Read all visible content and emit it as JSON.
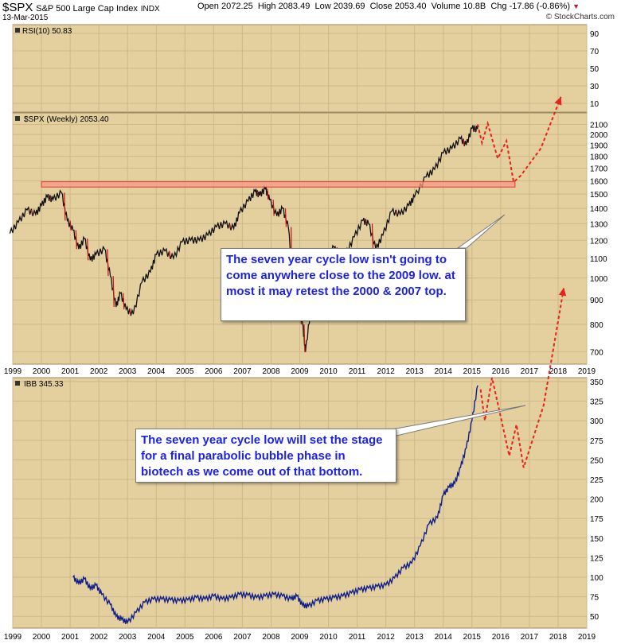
{
  "header": {
    "symbol": "$SPX",
    "name": "S&P 500 Large Cap Index",
    "exchange": "INDX",
    "date": "13-Mar-2015",
    "open_label": "Open",
    "open": "2072.25",
    "high_label": "High",
    "high": "2083.49",
    "low_label": "Low",
    "low": "2039.69",
    "close_label": "Close",
    "close": "2053.40",
    "volume_label": "Volume",
    "volume": "10.8B",
    "chg_label": "Chg",
    "chg": "-17.86 (-0.86%)",
    "watermark": "© StockCharts.com"
  },
  "colors": {
    "panel_bg": "#e4cf9f",
    "grid": "#cdb888",
    "price_line": "#111111",
    "price_down": "#cc1111",
    "ibb_line": "#101e8c",
    "projection": "#e8231b",
    "resistance_fill": "#f59a8a",
    "resistance_edge": "#e03a2a",
    "callout_text": "#1c22e6"
  },
  "chart_data": [
    {
      "type": "line",
      "panel": "RSI",
      "label": "RSI(10) 50.83",
      "y_ticks": [
        90,
        70,
        50,
        30,
        10
      ],
      "ylim": [
        0,
        100
      ],
      "series": []
    },
    {
      "type": "line",
      "panel": "SPX",
      "label": "$SPX (Weekly) 2053.40",
      "x_ticks": [
        "1999",
        "2000",
        "2001",
        "2002",
        "2003",
        "2004",
        "2005",
        "2006",
        "2007",
        "2008",
        "2009",
        "2010",
        "2011",
        "2012",
        "2013",
        "2014",
        "2015",
        "2016",
        "2017",
        "2018",
        "2019"
      ],
      "y_ticks": [
        2100,
        2000,
        1900,
        1800,
        1700,
        1600,
        1500,
        1400,
        1300,
        1200,
        1100,
        1000,
        900,
        800,
        700
      ],
      "y_scale": "log",
      "ylim": [
        660,
        2220
      ],
      "series": [
        {
          "kind": "price",
          "x": [
            1998.9,
            1999.2,
            1999.5,
            1999.8,
            2000.0,
            2000.2,
            2000.4,
            2000.7,
            2000.9,
            2001.1,
            2001.3,
            2001.5,
            2001.7,
            2001.9,
            2002.2,
            2002.4,
            2002.6,
            2002.75,
            2002.95,
            2003.2,
            2003.5,
            2003.8,
            2004.0,
            2004.3,
            2004.6,
            2004.9,
            2005.2,
            2005.5,
            2005.8,
            2006.1,
            2006.4,
            2006.7,
            2006.9,
            2007.2,
            2007.45,
            2007.6,
            2007.8,
            2007.95,
            2008.2,
            2008.4,
            2008.6,
            2008.8,
            2008.95,
            2009.1,
            2009.2,
            2009.4,
            2009.6,
            2009.9,
            2010.2,
            2010.4,
            2010.6,
            2010.9,
            2011.2,
            2011.4,
            2011.65,
            2011.9,
            2012.2,
            2012.5,
            2012.8,
            2013.0,
            2013.4,
            2013.7,
            2014.0,
            2014.3,
            2014.6,
            2014.8,
            2015.0,
            2015.2
          ],
          "y": [
            1240,
            1310,
            1390,
            1360,
            1420,
            1480,
            1460,
            1510,
            1320,
            1260,
            1150,
            1210,
            1090,
            1120,
            1150,
            1010,
            870,
            930,
            860,
            840,
            980,
            1030,
            1120,
            1140,
            1100,
            1190,
            1200,
            1200,
            1230,
            1280,
            1300,
            1270,
            1370,
            1450,
            1520,
            1490,
            1540,
            1460,
            1350,
            1400,
            1280,
            950,
            860,
            800,
            700,
            880,
            990,
            1110,
            1160,
            1080,
            1120,
            1220,
            1320,
            1300,
            1150,
            1230,
            1380,
            1360,
            1420,
            1480,
            1630,
            1690,
            1830,
            1870,
            1960,
            1900,
            2060,
            2053
          ]
        },
        {
          "kind": "projection",
          "x": [
            2015.2,
            2015.35,
            2015.55,
            2015.9,
            2016.2,
            2016.45,
            2016.7,
            2017.4,
            2018.1
          ],
          "y": [
            2100,
            1920,
            2110,
            1780,
            1940,
            1590,
            1640,
            1870,
            2400
          ]
        },
        {
          "kind": "resistance",
          "x": [
            2000.0,
            2016.5
          ],
          "y": [
            1552,
            1592
          ]
        }
      ],
      "annotation": "The seven year cycle low isn't going to come anywhere close to the 2009 low. at most it may retest the 2000 & 2007 top."
    },
    {
      "type": "line",
      "panel": "IBB",
      "label": "IBB 345.33",
      "x_ticks": [
        "1999",
        "2000",
        "2001",
        "2002",
        "2003",
        "2004",
        "2005",
        "2006",
        "2007",
        "2008",
        "2009",
        "2010",
        "2011",
        "2012",
        "2013",
        "2014",
        "2015",
        "2016",
        "2017",
        "2018",
        "2019"
      ],
      "y_ticks": [
        350,
        325,
        300,
        275,
        250,
        225,
        200,
        175,
        150,
        125,
        100,
        75,
        50
      ],
      "ylim": [
        35,
        355
      ],
      "series": [
        {
          "kind": "price",
          "x": [
            2001.1,
            2001.3,
            2001.5,
            2001.7,
            2001.9,
            2002.1,
            2002.4,
            2002.6,
            2002.8,
            2003.0,
            2003.3,
            2003.6,
            2003.9,
            2004.2,
            2004.5,
            2004.8,
            2005.1,
            2005.4,
            2005.7,
            2006.0,
            2006.3,
            2006.6,
            2006.9,
            2007.2,
            2007.5,
            2007.8,
            2008.1,
            2008.4,
            2008.7,
            2008.9,
            2009.1,
            2009.3,
            2009.6,
            2009.9,
            2010.2,
            2010.5,
            2010.8,
            2011.1,
            2011.4,
            2011.7,
            2012.0,
            2012.3,
            2012.6,
            2012.9,
            2013.2,
            2013.5,
            2013.8,
            2014.0,
            2014.2,
            2014.4,
            2014.6,
            2014.8,
            2015.0,
            2015.2
          ],
          "y": [
            100,
            92,
            98,
            85,
            90,
            78,
            65,
            50,
            46,
            42,
            55,
            68,
            72,
            72,
            71,
            70,
            71,
            74,
            72,
            76,
            72,
            74,
            78,
            77,
            74,
            76,
            78,
            76,
            72,
            76,
            64,
            63,
            70,
            72,
            74,
            76,
            80,
            84,
            86,
            88,
            90,
            99,
            112,
            118,
            140,
            168,
            176,
            205,
            215,
            220,
            240,
            265,
            300,
            345
          ]
        },
        {
          "kind": "projection",
          "x": [
            2015.3,
            2015.45,
            2015.7,
            2016.0,
            2016.3,
            2016.55,
            2016.8,
            2017.5,
            2018.2
          ],
          "y": [
            340,
            300,
            355,
            305,
            255,
            295,
            240,
            320,
            470
          ]
        }
      ],
      "annotation": "The seven year cycle low will set the stage for a final parabolic bubble phase in biotech as we come out of that bottom."
    }
  ]
}
